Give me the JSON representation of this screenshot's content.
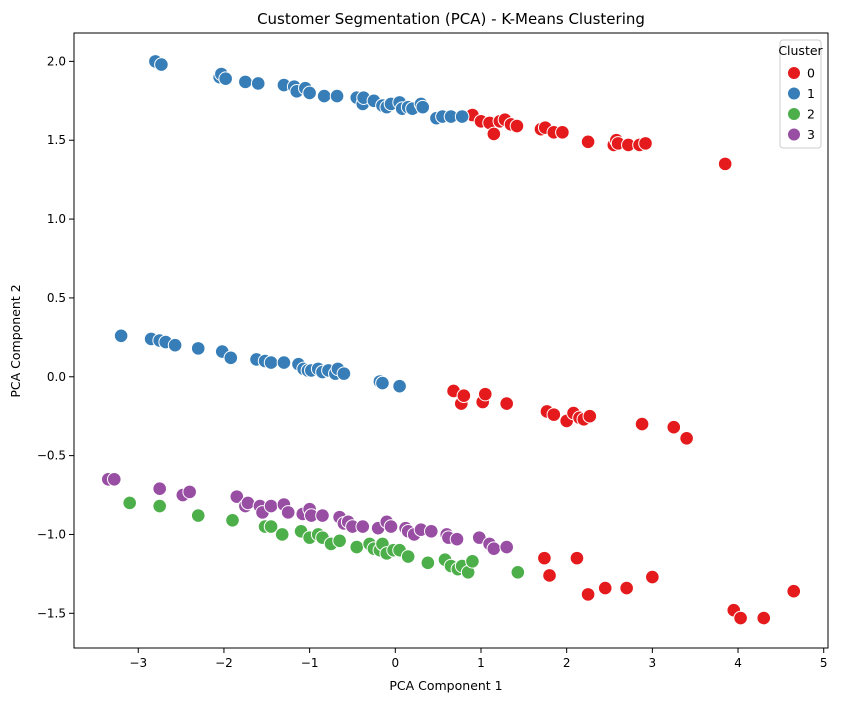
{
  "chart_data": {
    "type": "scatter",
    "title": "Customer Segmentation (PCA) - K-Means Clustering",
    "xlabel": "PCA Component 1",
    "ylabel": "PCA Component 2",
    "xlim": [
      -3.75,
      5.05
    ],
    "ylim": [
      -1.72,
      2.18
    ],
    "xticks": [
      -3,
      -2,
      -1,
      0,
      1,
      2,
      3,
      4,
      5
    ],
    "yticks": [
      -1.5,
      -1.0,
      -0.5,
      0.0,
      0.5,
      1.0,
      1.5,
      2.0
    ],
    "xtick_labels": [
      "−3",
      "−2",
      "−1",
      "0",
      "1",
      "2",
      "3",
      "4",
      "5"
    ],
    "ytick_labels": [
      "−1.5",
      "−1.0",
      "−0.5",
      "0.0",
      "0.5",
      "1.0",
      "1.5",
      "2.0"
    ],
    "grid": false,
    "legend": {
      "title": "Cluster",
      "position": "top-right",
      "entries": [
        "0",
        "1",
        "2",
        "3"
      ]
    },
    "series": [
      {
        "name": "0",
        "color": "#e41a1c",
        "points": [
          [
            0.9,
            1.66
          ],
          [
            1.0,
            1.62
          ],
          [
            1.1,
            1.61
          ],
          [
            1.15,
            1.54
          ],
          [
            1.22,
            1.62
          ],
          [
            1.28,
            1.63
          ],
          [
            1.35,
            1.6
          ],
          [
            1.42,
            1.59
          ],
          [
            1.7,
            1.57
          ],
          [
            1.75,
            1.58
          ],
          [
            1.85,
            1.55
          ],
          [
            1.95,
            1.55
          ],
          [
            2.25,
            1.49
          ],
          [
            2.55,
            1.47
          ],
          [
            2.58,
            1.5
          ],
          [
            2.6,
            1.48
          ],
          [
            2.72,
            1.47
          ],
          [
            2.85,
            1.47
          ],
          [
            2.92,
            1.48
          ],
          [
            3.85,
            1.35
          ],
          [
            0.68,
            -0.09
          ],
          [
            0.77,
            -0.17
          ],
          [
            0.8,
            -0.12
          ],
          [
            1.02,
            -0.16
          ],
          [
            1.05,
            -0.11
          ],
          [
            1.3,
            -0.17
          ],
          [
            1.77,
            -0.22
          ],
          [
            1.85,
            -0.24
          ],
          [
            2.0,
            -0.28
          ],
          [
            2.08,
            -0.23
          ],
          [
            2.15,
            -0.26
          ],
          [
            2.2,
            -0.27
          ],
          [
            2.27,
            -0.25
          ],
          [
            2.88,
            -0.3
          ],
          [
            3.25,
            -0.32
          ],
          [
            3.4,
            -0.39
          ],
          [
            1.74,
            -1.15
          ],
          [
            1.8,
            -1.26
          ],
          [
            2.12,
            -1.15
          ],
          [
            2.25,
            -1.38
          ],
          [
            2.45,
            -1.34
          ],
          [
            2.7,
            -1.34
          ],
          [
            3.0,
            -1.27
          ],
          [
            3.95,
            -1.48
          ],
          [
            4.03,
            -1.53
          ],
          [
            4.3,
            -1.53
          ],
          [
            4.65,
            -1.36
          ]
        ]
      },
      {
        "name": "1",
        "color": "#377eb8",
        "points": [
          [
            -2.8,
            2.0
          ],
          [
            -2.73,
            1.98
          ],
          [
            -2.05,
            1.9
          ],
          [
            -2.03,
            1.92
          ],
          [
            -1.98,
            1.89
          ],
          [
            -1.75,
            1.87
          ],
          [
            -1.6,
            1.86
          ],
          [
            -1.3,
            1.85
          ],
          [
            -1.18,
            1.84
          ],
          [
            -1.15,
            1.81
          ],
          [
            -1.05,
            1.83
          ],
          [
            -1.0,
            1.8
          ],
          [
            -0.83,
            1.78
          ],
          [
            -0.68,
            1.78
          ],
          [
            -0.45,
            1.77
          ],
          [
            -0.38,
            1.73
          ],
          [
            -0.37,
            1.77
          ],
          [
            -0.25,
            1.75
          ],
          [
            -0.15,
            1.72
          ],
          [
            -0.1,
            1.71
          ],
          [
            -0.05,
            1.73
          ],
          [
            0.05,
            1.74
          ],
          [
            0.08,
            1.7
          ],
          [
            0.15,
            1.71
          ],
          [
            0.2,
            1.7
          ],
          [
            0.3,
            1.73
          ],
          [
            0.32,
            1.71
          ],
          [
            0.48,
            1.64
          ],
          [
            0.55,
            1.65
          ],
          [
            0.65,
            1.65
          ],
          [
            0.78,
            1.65
          ],
          [
            -3.2,
            0.26
          ],
          [
            -2.85,
            0.24
          ],
          [
            -2.75,
            0.23
          ],
          [
            -2.68,
            0.22
          ],
          [
            -2.57,
            0.2
          ],
          [
            -2.3,
            0.18
          ],
          [
            -2.02,
            0.16
          ],
          [
            -1.92,
            0.12
          ],
          [
            -1.62,
            0.11
          ],
          [
            -1.52,
            0.1
          ],
          [
            -1.45,
            0.09
          ],
          [
            -1.3,
            0.09
          ],
          [
            -1.13,
            0.08
          ],
          [
            -1.07,
            0.05
          ],
          [
            -1.02,
            0.04
          ],
          [
            -0.98,
            0.04
          ],
          [
            -0.9,
            0.05
          ],
          [
            -0.85,
            0.03
          ],
          [
            -0.78,
            0.04
          ],
          [
            -0.7,
            0.02
          ],
          [
            -0.67,
            0.05
          ],
          [
            -0.6,
            0.02
          ],
          [
            -0.18,
            -0.03
          ],
          [
            -0.15,
            -0.04
          ],
          [
            0.05,
            -0.06
          ]
        ]
      },
      {
        "name": "2",
        "color": "#4daf4a",
        "points": [
          [
            -3.1,
            -0.8
          ],
          [
            -2.75,
            -0.82
          ],
          [
            -2.3,
            -0.88
          ],
          [
            -1.9,
            -0.91
          ],
          [
            -1.52,
            -0.95
          ],
          [
            -1.45,
            -0.95
          ],
          [
            -1.32,
            -1.0
          ],
          [
            -1.1,
            -0.98
          ],
          [
            -1.0,
            -1.02
          ],
          [
            -0.9,
            -1.0
          ],
          [
            -0.85,
            -1.02
          ],
          [
            -0.75,
            -1.06
          ],
          [
            -0.65,
            -1.04
          ],
          [
            -0.45,
            -1.08
          ],
          [
            -0.3,
            -1.06
          ],
          [
            -0.25,
            -1.09
          ],
          [
            -0.18,
            -1.1
          ],
          [
            -0.15,
            -1.06
          ],
          [
            -0.1,
            -1.12
          ],
          [
            -0.02,
            -1.1
          ],
          [
            0.05,
            -1.1
          ],
          [
            0.15,
            -1.14
          ],
          [
            0.38,
            -1.18
          ],
          [
            0.58,
            -1.16
          ],
          [
            0.65,
            -1.2
          ],
          [
            0.73,
            -1.22
          ],
          [
            0.78,
            -1.2
          ],
          [
            0.85,
            -1.24
          ],
          [
            0.9,
            -1.17
          ],
          [
            1.43,
            -1.24
          ]
        ]
      },
      {
        "name": "3",
        "color": "#984ea3",
        "points": [
          [
            -3.35,
            -0.65
          ],
          [
            -3.28,
            -0.65
          ],
          [
            -2.75,
            -0.71
          ],
          [
            -2.48,
            -0.75
          ],
          [
            -2.4,
            -0.73
          ],
          [
            -1.85,
            -0.76
          ],
          [
            -1.75,
            -0.82
          ],
          [
            -1.72,
            -0.8
          ],
          [
            -1.58,
            -0.82
          ],
          [
            -1.55,
            -0.86
          ],
          [
            -1.45,
            -0.82
          ],
          [
            -1.3,
            -0.81
          ],
          [
            -1.25,
            -0.86
          ],
          [
            -1.08,
            -0.87
          ],
          [
            -1.0,
            -0.84
          ],
          [
            -0.98,
            -0.88
          ],
          [
            -0.85,
            -0.88
          ],
          [
            -0.65,
            -0.89
          ],
          [
            -0.6,
            -0.93
          ],
          [
            -0.55,
            -0.92
          ],
          [
            -0.5,
            -0.95
          ],
          [
            -0.38,
            -0.95
          ],
          [
            -0.2,
            -0.96
          ],
          [
            -0.1,
            -0.92
          ],
          [
            -0.05,
            -0.95
          ],
          [
            0.12,
            -0.96
          ],
          [
            0.15,
            -0.98
          ],
          [
            0.22,
            -1.0
          ],
          [
            0.3,
            -0.97
          ],
          [
            0.42,
            -0.98
          ],
          [
            0.6,
            -1.0
          ],
          [
            0.62,
            -1.02
          ],
          [
            0.72,
            -1.03
          ],
          [
            0.98,
            -1.02
          ],
          [
            1.1,
            -1.06
          ],
          [
            1.15,
            -1.09
          ],
          [
            1.3,
            -1.08
          ]
        ]
      }
    ]
  }
}
